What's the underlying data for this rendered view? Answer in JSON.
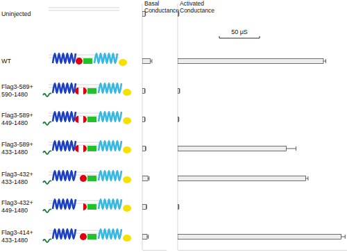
{
  "chart_data": {
    "type": "bar",
    "orientation": "horizontal",
    "tick_labels": false,
    "categories": [
      "Uninjected",
      "WT",
      "Flag3-589+590-1480",
      "Flag3-589+449-1480",
      "Flag3-589+433-1480",
      "Flag3-432+433-1480",
      "Flag3-432+449-1480",
      "Flag3-414+433-1480"
    ],
    "series": [
      {
        "name": "Basal Conductance",
        "color": "#ededed",
        "xlim": [
          0,
          30
        ],
        "values": [
          3.5,
          10,
          3,
          3,
          4,
          7,
          5,
          6
        ],
        "errors": [
          0.5,
          2,
          0.5,
          0.5,
          0.5,
          1.5,
          0.5,
          1.5
        ]
      },
      {
        "name": "Activated Conductance",
        "color": "#ededed",
        "xlim": [
          0,
          210
        ],
        "values": [
          1,
          181,
          2,
          1,
          135,
          159,
          1,
          203
        ],
        "errors": [
          0.5,
          3,
          0.5,
          0.5,
          12,
          3,
          0.5,
          5
        ]
      }
    ],
    "scale_bar": {
      "value": 50,
      "label": "50 μS"
    }
  }
}
